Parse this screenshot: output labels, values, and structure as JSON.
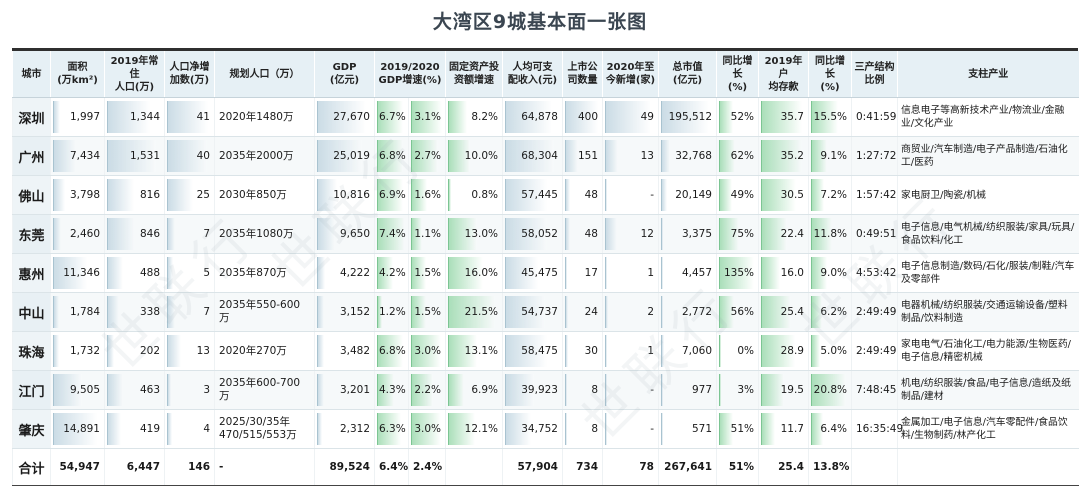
{
  "title": "大湾区9城基本面一张图",
  "headers": [
    "城市",
    "面积\n(万km²)",
    "2019年常住\n人口(万)",
    "人口净增\n加数(万)",
    "规划人口（万）",
    "GDP\n(亿元)",
    "2019/2020\nGDP增速(%)",
    "固定资产投\n资额增速",
    "人均可支\n配收入(元)",
    "上市公\n司数量",
    "2020年至\n今新增(家)",
    "总市值\n(亿元)",
    "同比增长\n(%)",
    "2019年户\n均存款",
    "同比增长\n(%)",
    "三产结构\n比例",
    "支柱产业"
  ],
  "rows": [
    {
      "city": "深圳",
      "area": "1,997",
      "pop": "1,344",
      "pop_inc": "41",
      "plan": "2020年1480万",
      "gdp": "27,670",
      "g19": "6.7%",
      "g20": "3.1%",
      "invest": "8.2%",
      "income": "64,878",
      "listed": "400",
      "new_listed": "49",
      "mktcap": "195,512",
      "mk_yoy": "52%",
      "deposit": "35.7",
      "dep_yoy": "15.5%",
      "struct": "0:41:59",
      "industry": "信息电子等高新技术产业/物流业/金融业/文化产业"
    },
    {
      "city": "广州",
      "area": "7,434",
      "pop": "1,531",
      "pop_inc": "40",
      "plan": "2035年2000万",
      "gdp": "25,019",
      "g19": "6.8%",
      "g20": "2.7%",
      "invest": "10.0%",
      "income": "68,304",
      "listed": "151",
      "new_listed": "13",
      "mktcap": "32,768",
      "mk_yoy": "62%",
      "deposit": "35.2",
      "dep_yoy": "9.1%",
      "struct": "1:27:72",
      "industry": "商贸业/汽车制造/电子产品制造/石油化工/医药"
    },
    {
      "city": "佛山",
      "area": "3,798",
      "pop": "816",
      "pop_inc": "25",
      "plan": "2030年850万",
      "gdp": "10,816",
      "g19": "6.9%",
      "g20": "1.6%",
      "invest": "0.8%",
      "income": "57,445",
      "listed": "48",
      "new_listed": "-",
      "mktcap": "20,149",
      "mk_yoy": "49%",
      "deposit": "30.5",
      "dep_yoy": "7.2%",
      "struct": "1:57:42",
      "industry": "家电厨卫/陶瓷/机械"
    },
    {
      "city": "东莞",
      "area": "2,460",
      "pop": "846",
      "pop_inc": "7",
      "plan": "2035年1080万",
      "gdp": "9,650",
      "g19": "7.4%",
      "g20": "1.1%",
      "invest": "13.0%",
      "income": "58,052",
      "listed": "48",
      "new_listed": "12",
      "mktcap": "3,375",
      "mk_yoy": "75%",
      "deposit": "22.4",
      "dep_yoy": "11.8%",
      "struct": "0:49:51",
      "industry": "电子信息/电气机械/纺织服装/家具/玩具/食品饮料/化工"
    },
    {
      "city": "惠州",
      "area": "11,346",
      "pop": "488",
      "pop_inc": "5",
      "plan": "2035年870万",
      "gdp": "4,222",
      "g19": "4.2%",
      "g20": "1.5%",
      "invest": "16.0%",
      "income": "45,475",
      "listed": "17",
      "new_listed": "1",
      "mktcap": "4,457",
      "mk_yoy": "135%",
      "deposit": "16.0",
      "dep_yoy": "9.0%",
      "struct": "4:53:42",
      "industry": "电子信息制造/数码/石化/服装/制鞋/汽车及零部件"
    },
    {
      "city": "中山",
      "area": "1,784",
      "pop": "338",
      "pop_inc": "7",
      "plan": "2035年550-600万",
      "gdp": "3,152",
      "g19": "1.2%",
      "g20": "1.5%",
      "invest": "21.5%",
      "income": "54,737",
      "listed": "24",
      "new_listed": "2",
      "mktcap": "2,772",
      "mk_yoy": "56%",
      "deposit": "25.4",
      "dep_yoy": "6.2%",
      "struct": "2:49:49",
      "industry": "电器机械/纺织服装/交通运输设备/塑料制品/饮料制造"
    },
    {
      "city": "珠海",
      "area": "1,732",
      "pop": "202",
      "pop_inc": "13",
      "plan": "2020年270万",
      "gdp": "3,482",
      "g19": "6.8%",
      "g20": "3.0%",
      "invest": "13.1%",
      "income": "58,475",
      "listed": "30",
      "new_listed": "1",
      "mktcap": "7,060",
      "mk_yoy": "0%",
      "deposit": "28.9",
      "dep_yoy": "5.0%",
      "struct": "2:49:49",
      "industry": "家电电气/石油化工/电力能源/生物医药/电子信息/精密机械"
    },
    {
      "city": "江门",
      "area": "9,505",
      "pop": "463",
      "pop_inc": "3",
      "plan": "2035年600-700万",
      "gdp": "3,201",
      "g19": "4.3%",
      "g20": "2.2%",
      "invest": "6.9%",
      "income": "39,923",
      "listed": "8",
      "new_listed": "-",
      "mktcap": "977",
      "mk_yoy": "3%",
      "deposit": "19.5",
      "dep_yoy": "20.8%",
      "struct": "7:48:45",
      "industry": "机电/纺织服装/食品/电子信息/造纸及纸制品/建材"
    },
    {
      "city": "肇庆",
      "area": "14,891",
      "pop": "419",
      "pop_inc": "4",
      "plan": "2025/30/35年470/515/553万",
      "gdp": "2,312",
      "g19": "6.3%",
      "g20": "3.0%",
      "invest": "12.1%",
      "income": "34,752",
      "listed": "8",
      "new_listed": "-",
      "mktcap": "571",
      "mk_yoy": "51%",
      "deposit": "11.7",
      "dep_yoy": "6.4%",
      "struct": "16:35:49",
      "industry": "金属加工/电子信息/汽车零配件/食品饮料/生物制药/林产化工"
    }
  ],
  "total": {
    "city": "合计",
    "area": "54,947",
    "pop": "6,447",
    "pop_inc": "146",
    "plan": "-",
    "gdp": "89,524",
    "g19": "6.4%",
    "g20": "2.4%",
    "invest": "",
    "income": "57,904",
    "listed": "734",
    "new_listed": "78",
    "mktcap": "267,641",
    "mk_yoy": "51%",
    "deposit": "25.4",
    "dep_yoy": "13.8%",
    "struct": "",
    "industry": ""
  },
  "watermark": "世联行",
  "colors": {
    "header_bg": "#e6f0f5",
    "bar_blue": "#c8dae4",
    "bar_green": "#a6ddb6"
  }
}
